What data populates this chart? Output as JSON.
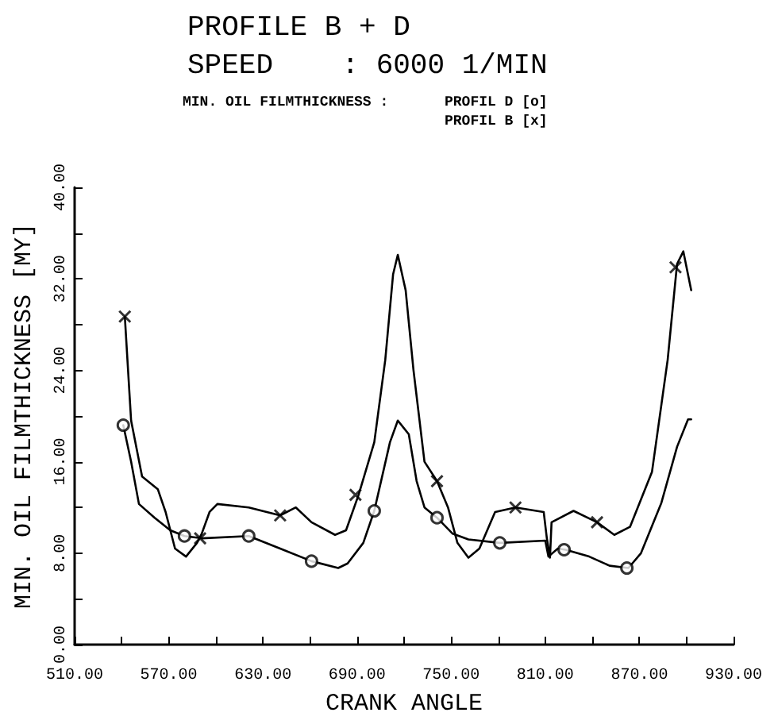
{
  "chart_data": {
    "type": "line",
    "title": "PROFILE B + D",
    "subtitle": "SPEED    : 6000 1/MIN",
    "xlabel": "CRANK ANGLE",
    "ylabel": "MIN. OIL FILMTHICKNESS [MY]",
    "annotations": [
      "MIN. OIL FILMTHICKNESS :",
      "PROFIL D [o]",
      "PROFIL B [x]"
    ],
    "xlim": [
      510,
      930
    ],
    "ylim": [
      0,
      40
    ],
    "xticks": [
      {
        "value": 510,
        "label": "510.00"
      },
      {
        "value": 540,
        "label": null
      },
      {
        "value": 570,
        "label": "570.00"
      },
      {
        "value": 600,
        "label": null
      },
      {
        "value": 630,
        "label": "630.00"
      },
      {
        "value": 660,
        "label": null
      },
      {
        "value": 690,
        "label": "690.00"
      },
      {
        "value": 720,
        "label": null
      },
      {
        "value": 750,
        "label": "750.00"
      },
      {
        "value": 780,
        "label": null
      },
      {
        "value": 810,
        "label": "810.00"
      },
      {
        "value": 840,
        "label": null
      },
      {
        "value": 870,
        "label": "870.00"
      },
      {
        "value": 900,
        "label": null
      },
      {
        "value": 930,
        "label": "930.00"
      }
    ],
    "yticks": [
      {
        "value": 0,
        "label": "0.00"
      },
      {
        "value": 4,
        "label": null
      },
      {
        "value": 8,
        "label": "8.00"
      },
      {
        "value": 12,
        "label": null
      },
      {
        "value": 16,
        "label": "16.00"
      },
      {
        "value": 20,
        "label": null
      },
      {
        "value": 24,
        "label": "24.00"
      },
      {
        "value": 28,
        "label": null
      },
      {
        "value": 32,
        "label": "32.00"
      },
      {
        "value": 36,
        "label": null
      },
      {
        "value": 40,
        "label": "40.00"
      }
    ],
    "grid": false,
    "marker": "none",
    "line_style": "solid",
    "series": [
      {
        "color": "#000000",
        "x": [
          542,
          546,
          553,
          563,
          568,
          574,
          581,
          588,
          591,
          596,
          601,
          621,
          641,
          651,
          661,
          676,
          683,
          691,
          701,
          708,
          713,
          716,
          721,
          726,
          733,
          741,
          748,
          754,
          761,
          768,
          778,
          791,
          809,
          811,
          813,
          814,
          828,
          843,
          854,
          864,
          878,
          888,
          894,
          898,
          903
        ],
        "values": [
          28.7,
          19.6,
          14.7,
          13.6,
          11.6,
          8.4,
          7.7,
          8.9,
          9.7,
          11.6,
          12.3,
          12,
          11.3,
          12,
          10.7,
          9.6,
          10,
          13.1,
          17.7,
          24.9,
          32.4,
          34.1,
          31,
          24,
          16,
          14.3,
          12,
          8.9,
          7.6,
          8.4,
          11.6,
          12,
          11.6,
          9.3,
          7.6,
          10.7,
          11.7,
          10.7,
          9.6,
          10.3,
          15.1,
          24.9,
          33.3,
          34.4,
          31
        ]
      },
      {
        "color": "#000000",
        "x": [
          541,
          546,
          551,
          561,
          571,
          580,
          591,
          621,
          641,
          661,
          678,
          684,
          694,
          701,
          711,
          716,
          723,
          728,
          733,
          741,
          751,
          761,
          781,
          810,
          812,
          818,
          823,
          838,
          851,
          863,
          871,
          884,
          894,
          901,
          903
        ],
        "values": [
          19.2,
          16,
          12.3,
          11.1,
          10,
          9.5,
          9.3,
          9.5,
          8.4,
          7.3,
          6.7,
          7.1,
          8.9,
          11.7,
          17.7,
          19.6,
          18.4,
          14.3,
          12,
          11.1,
          9.7,
          9.2,
          8.9,
          9.1,
          7.7,
          8.4,
          8.3,
          7.7,
          6.9,
          6.7,
          8,
          12.4,
          17.3,
          19.7,
          19.7
        ]
      },
      {
        "type": "scatter",
        "marker": "cross",
        "color": "#000000",
        "x": [
          542,
          590,
          641,
          689,
          741,
          791,
          843,
          893
        ],
        "values": [
          28.7,
          9.3,
          11.3,
          13.1,
          14.3,
          12,
          10.7,
          33
        ]
      },
      {
        "type": "scatter",
        "marker": "circle",
        "color": "#000000",
        "x": [
          541,
          580,
          621,
          661,
          701,
          741,
          781,
          822,
          862
        ],
        "values": [
          19.2,
          9.5,
          9.5,
          7.3,
          11.7,
          11.1,
          8.9,
          8.3,
          6.7
        ]
      }
    ]
  }
}
